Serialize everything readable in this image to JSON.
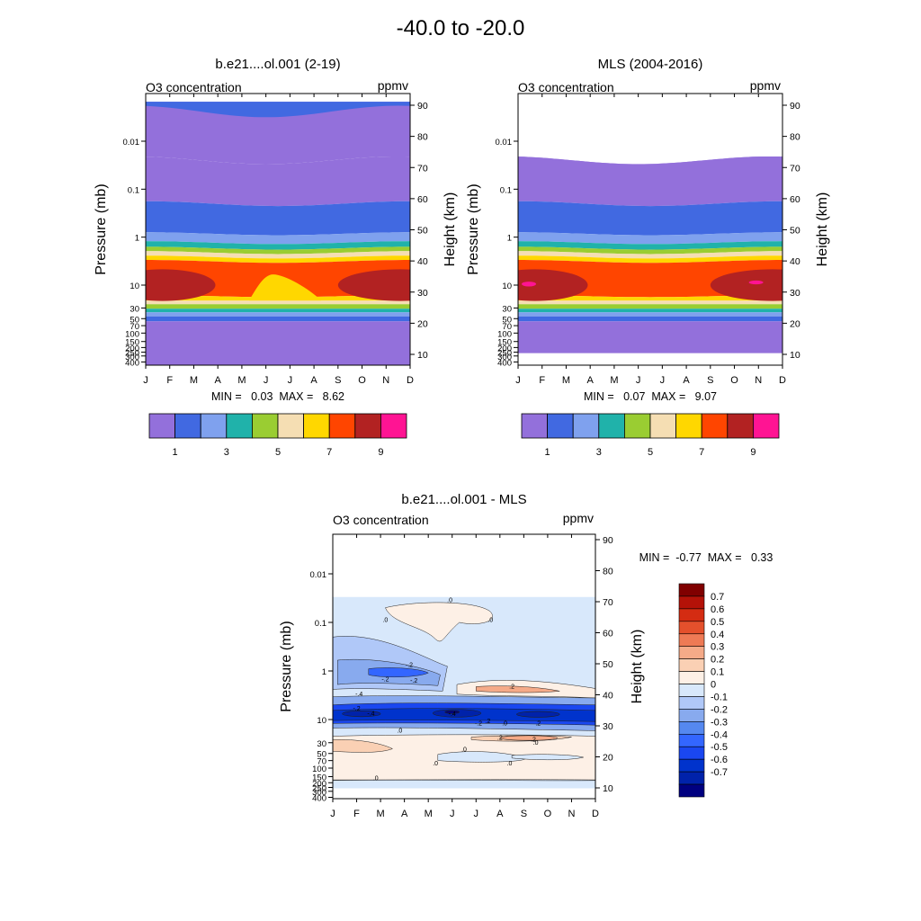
{
  "figure_title": "-40.0 to -20.0",
  "chart_data": [
    {
      "type": "heatmap",
      "title": "b.e21....ol.001 (2-19)",
      "left_string": "O3 concentration",
      "right_string": "ppmv",
      "xlabel": "",
      "ylabel": "Pressure (mb)",
      "ylabel_right": "Height (km)",
      "x_ticks": [
        "J",
        "F",
        "M",
        "A",
        "M",
        "J",
        "J",
        "A",
        "S",
        "O",
        "N",
        "D"
      ],
      "pressure_ticks": [
        "0.01",
        "0.1",
        "1",
        "10",
        "30",
        "50",
        "70",
        "100",
        "150",
        "200",
        "250",
        "300",
        "400"
      ],
      "height_ticks": [
        "10",
        "20",
        "30",
        "40",
        "50",
        "60",
        "70",
        "80",
        "90"
      ],
      "stats_text": "MIN =   0.03  MAX =   8.62",
      "min": 0.03,
      "max": 8.62,
      "top_level_mb": 0.0015,
      "colorbar": {
        "colors": [
          "#9370DB",
          "#4169E1",
          "#7FA1EE",
          "#20B2AA",
          "#9ACD32",
          "#F5DEB3",
          "#FFD700",
          "#FF4500",
          "#B22222",
          "#FF1493"
        ],
        "labels": [
          "1",
          "3",
          "5",
          "7",
          "9"
        ]
      }
    },
    {
      "type": "heatmap",
      "title": "MLS (2004-2016)",
      "left_string": "O3 concentration",
      "right_string": "ppmv",
      "xlabel": "",
      "ylabel": "Pressure (mb)",
      "ylabel_right": "Height (km)",
      "x_ticks": [
        "J",
        "F",
        "M",
        "A",
        "M",
        "J",
        "J",
        "A",
        "S",
        "O",
        "N",
        "D"
      ],
      "pressure_ticks": [
        "0.01",
        "0.1",
        "1",
        "10",
        "30",
        "50",
        "70",
        "100",
        "150",
        "200",
        "250",
        "300",
        "400"
      ],
      "height_ticks": [
        "10",
        "20",
        "30",
        "40",
        "50",
        "60",
        "70",
        "80",
        "90"
      ],
      "stats_text": "MIN =   0.07  MAX =   9.07",
      "min": 0.07,
      "max": 9.07,
      "top_level_mb": 0.03,
      "bottom_level_mb": 261,
      "colorbar": {
        "colors": [
          "#9370DB",
          "#4169E1",
          "#7FA1EE",
          "#20B2AA",
          "#9ACD32",
          "#F5DEB3",
          "#FFD700",
          "#FF4500",
          "#B22222",
          "#FF1493"
        ],
        "labels": [
          "1",
          "3",
          "5",
          "7",
          "9"
        ]
      }
    },
    {
      "type": "heatmap",
      "title": "b.e21....ol.001 - MLS",
      "left_string": "O3 concentration",
      "right_string": "ppmv",
      "xlabel": "",
      "ylabel": "Pressure (mb)",
      "ylabel_right": "Height (km)",
      "x_ticks": [
        "J",
        "F",
        "M",
        "A",
        "M",
        "J",
        "J",
        "A",
        "S",
        "O",
        "N",
        "D"
      ],
      "pressure_ticks": [
        "0.01",
        "0.1",
        "1",
        "10",
        "30",
        "50",
        "70",
        "100",
        "150",
        "200",
        "250",
        "300",
        "400"
      ],
      "height_ticks": [
        "10",
        "20",
        "30",
        "40",
        "50",
        "60",
        "70",
        "80",
        "90"
      ],
      "stats_text": "MIN =  -0.77  MAX =   0.33",
      "min": -0.77,
      "max": 0.33,
      "top_level_mb": 0.03,
      "bottom_level_mb": 261,
      "contour_labels": [
        ".0",
        ".0",
        ".0",
        "-.2",
        "-.2",
        "-.2",
        ".2",
        "-.4",
        "-.4",
        "-.2",
        ".2",
        ".0",
        ".2",
        "-.2",
        "-.4",
        ".0",
        ".2",
        ".2",
        ".0",
        ".0",
        ".0",
        ".0",
        ".0"
      ],
      "colorbar": {
        "colors": [
          "#000080",
          "#0022AA",
          "#0033CC",
          "#1A47F0",
          "#3366FF",
          "#5588F0",
          "#88AAEE",
          "#B0C8F8",
          "#D8E8FB",
          "#FDF0E6",
          "#FAD0B4",
          "#F5AA88",
          "#EE7A55",
          "#E4502C",
          "#D42C12",
          "#B41208",
          "#800000"
        ],
        "labels": [
          "-0.7",
          "-0.6",
          "-0.5",
          "-0.4",
          "-0.3",
          "-0.2",
          "-0.1",
          "0",
          "0.1",
          "0.2",
          "0.3",
          "0.4",
          "0.5",
          "0.6",
          "0.7"
        ]
      }
    }
  ]
}
